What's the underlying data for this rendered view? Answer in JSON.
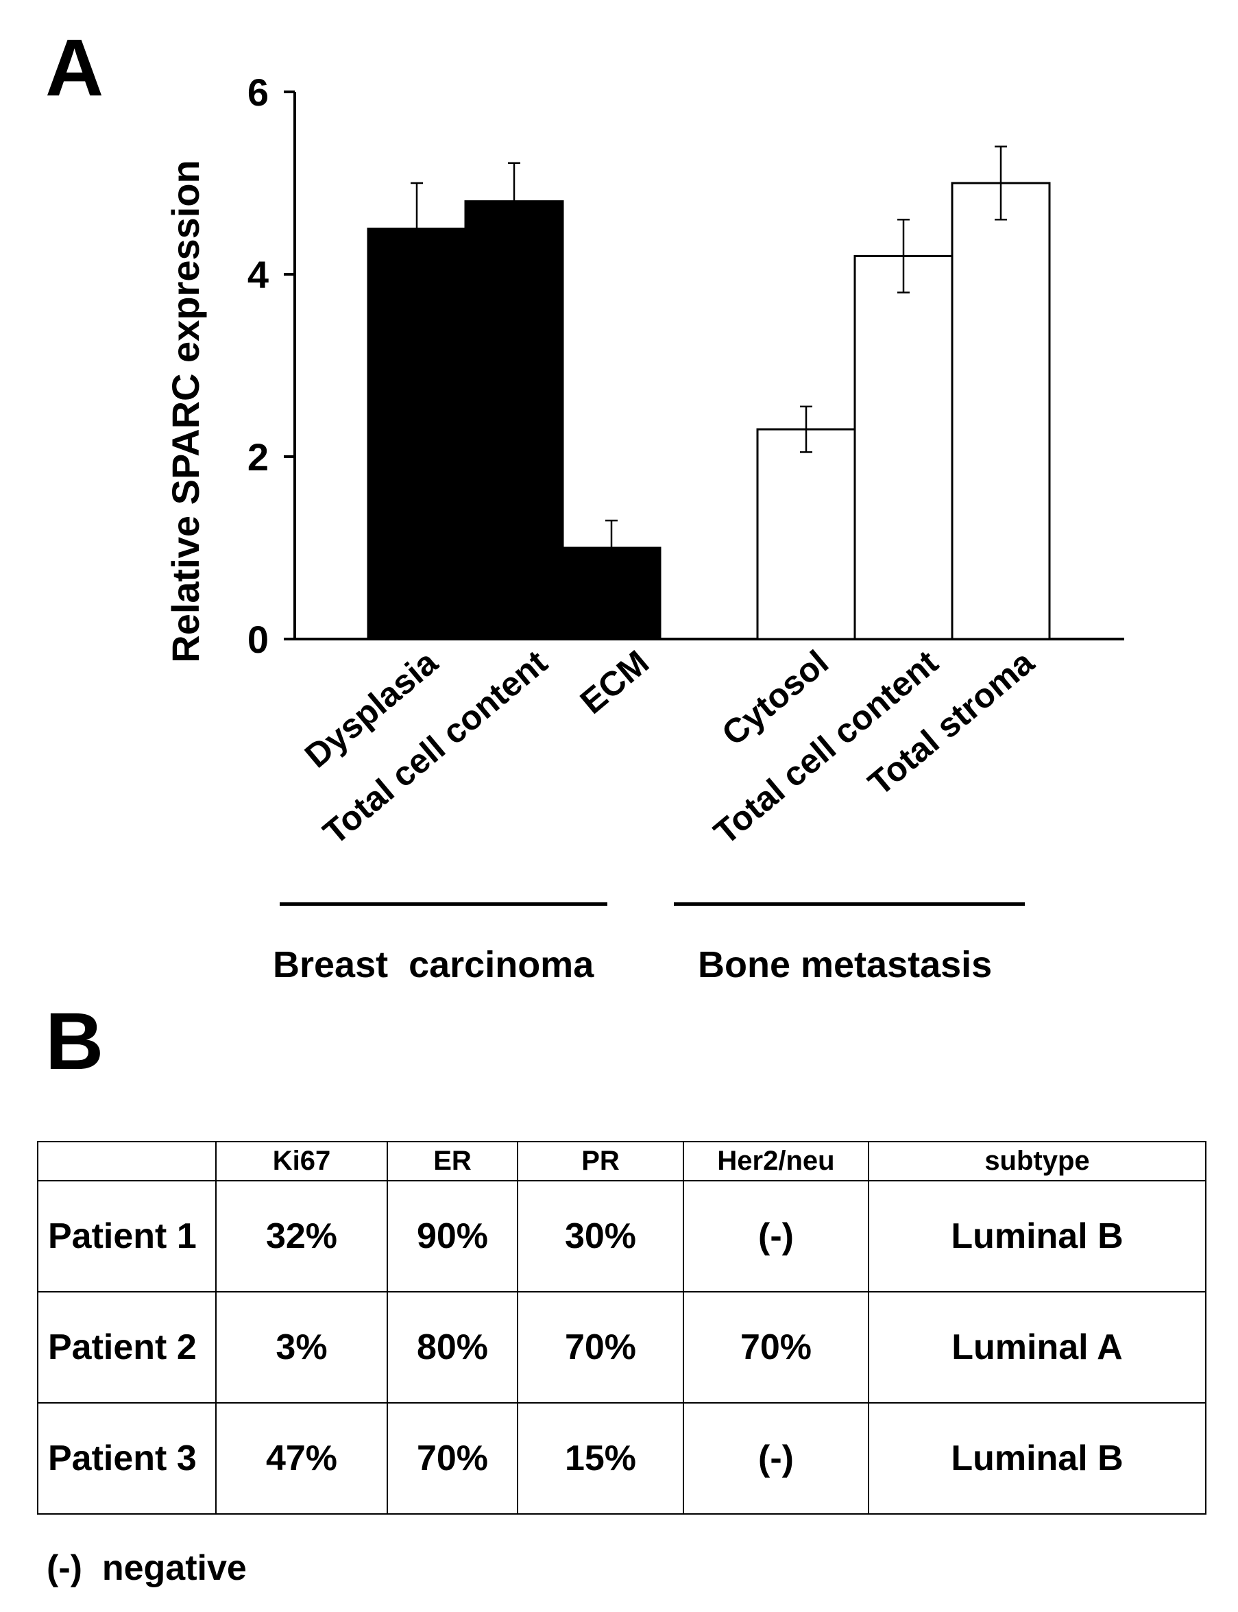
{
  "panels": {
    "a_label": "A",
    "b_label": "B"
  },
  "chart_data": {
    "type": "bar",
    "title": "",
    "xlabel": "",
    "ylabel": "Relative SPARC expression",
    "ylim": [
      0,
      6
    ],
    "yticks": [
      0,
      2,
      4,
      6
    ],
    "categories": [
      "Dysplasia",
      "Total cell content",
      "ECM",
      "Cytosol",
      "Total cell content",
      "Total stroma"
    ],
    "values": [
      4.5,
      4.8,
      1.0,
      2.3,
      4.2,
      5.0
    ],
    "errors": [
      0.5,
      0.42,
      0.3,
      0.25,
      0.4,
      0.4
    ],
    "bar_colors": [
      "#000000",
      "#000000",
      "#000000",
      "#ffffff",
      "#ffffff",
      "#ffffff"
    ],
    "groups": [
      {
        "name": "Breast  carcinoma",
        "categories": [
          "Dysplasia",
          "Total cell content",
          "ECM"
        ],
        "color": "#000000"
      },
      {
        "name": "Bone metastasis",
        "categories": [
          "Cytosol",
          "Total cell content",
          "Total stroma"
        ],
        "color": "#ffffff"
      }
    ]
  },
  "table": {
    "headers": [
      "",
      "Ki67",
      "ER",
      "PR",
      "Her2/neu",
      "subtype"
    ],
    "rows": [
      [
        "Patient 1",
        "32%",
        "90%",
        "30%",
        "(-)",
        "Luminal B"
      ],
      [
        "Patient 2",
        "3%",
        "80%",
        "70%",
        "70%",
        "Luminal A"
      ],
      [
        "Patient 3",
        "47%",
        "70%",
        "15%",
        "(-)",
        "Luminal B"
      ]
    ]
  },
  "footnote": "(-)  negative"
}
